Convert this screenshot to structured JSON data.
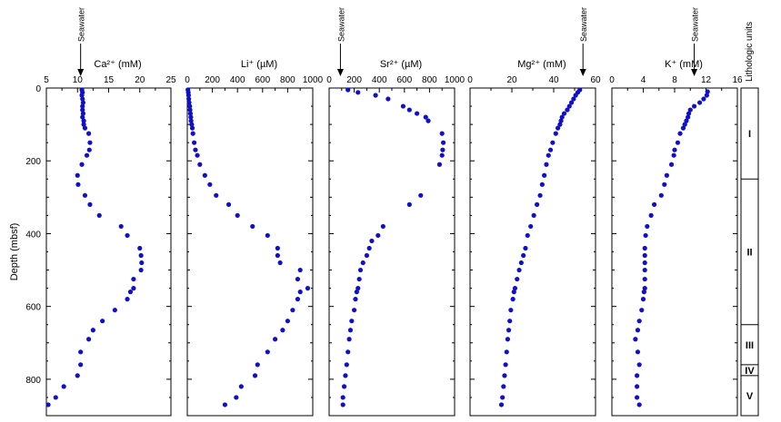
{
  "chart_data": {
    "type": "scatter",
    "ylabel": "Depth (mbsf)",
    "ylim": [
      0,
      900
    ],
    "yticks": [
      0,
      200,
      400,
      600,
      800
    ],
    "point_color": "#1010c8",
    "panels": [
      {
        "label": "Ca²⁺ (mM)",
        "xlim": [
          5,
          25
        ],
        "xticks": [
          5,
          10,
          15,
          20,
          25
        ],
        "seawater": {
          "label": "Seawater",
          "value": 10.5
        },
        "points": [
          [
            10.7,
            5
          ],
          [
            10.8,
            12
          ],
          [
            10.7,
            20
          ],
          [
            10.8,
            30
          ],
          [
            10.9,
            40
          ],
          [
            10.8,
            50
          ],
          [
            10.8,
            60
          ],
          [
            10.9,
            70
          ],
          [
            10.8,
            80
          ],
          [
            11.0,
            90
          ],
          [
            11.0,
            100
          ],
          [
            11.2,
            110
          ],
          [
            11.8,
            125
          ],
          [
            12.0,
            150
          ],
          [
            11.9,
            170
          ],
          [
            11.5,
            185
          ],
          [
            10.7,
            210
          ],
          [
            10.0,
            240
          ],
          [
            10.1,
            265
          ],
          [
            11.2,
            295
          ],
          [
            12.0,
            320
          ],
          [
            13.5,
            350
          ],
          [
            17.0,
            380
          ],
          [
            18.0,
            405
          ],
          [
            20.0,
            440
          ],
          [
            20.2,
            460
          ],
          [
            20.3,
            480
          ],
          [
            20.2,
            500
          ],
          [
            19.0,
            525
          ],
          [
            19.0,
            550
          ],
          [
            18.5,
            560
          ],
          [
            18.0,
            580
          ],
          [
            16.0,
            610
          ],
          [
            14.0,
            640
          ],
          [
            12.5,
            665
          ],
          [
            11.8,
            690
          ],
          [
            10.5,
            725
          ],
          [
            10.5,
            760
          ],
          [
            10.0,
            790
          ],
          [
            7.8,
            820
          ],
          [
            6.5,
            850
          ],
          [
            5.3,
            870
          ]
        ]
      },
      {
        "label": "Li⁺ (µM)",
        "xlim": [
          0,
          1000
        ],
        "xticks": [
          0,
          200,
          400,
          600,
          800,
          1000
        ],
        "points": [
          [
            5,
            5
          ],
          [
            8,
            12
          ],
          [
            10,
            20
          ],
          [
            12,
            30
          ],
          [
            15,
            40
          ],
          [
            20,
            50
          ],
          [
            22,
            60
          ],
          [
            25,
            70
          ],
          [
            28,
            80
          ],
          [
            30,
            90
          ],
          [
            35,
            100
          ],
          [
            40,
            110
          ],
          [
            45,
            125
          ],
          [
            55,
            150
          ],
          [
            65,
            170
          ],
          [
            80,
            185
          ],
          [
            100,
            210
          ],
          [
            140,
            240
          ],
          [
            180,
            265
          ],
          [
            230,
            295
          ],
          [
            330,
            320
          ],
          [
            400,
            350
          ],
          [
            520,
            380
          ],
          [
            640,
            405
          ],
          [
            720,
            440
          ],
          [
            720,
            460
          ],
          [
            740,
            480
          ],
          [
            900,
            500
          ],
          [
            880,
            525
          ],
          [
            960,
            550
          ],
          [
            900,
            560
          ],
          [
            880,
            580
          ],
          [
            840,
            610
          ],
          [
            800,
            640
          ],
          [
            760,
            665
          ],
          [
            700,
            690
          ],
          [
            640,
            725
          ],
          [
            560,
            760
          ],
          [
            540,
            790
          ],
          [
            430,
            820
          ],
          [
            390,
            850
          ],
          [
            300,
            870
          ]
        ]
      },
      {
        "label": "Sr²⁺ (µM)",
        "xlim": [
          0,
          1000
        ],
        "xticks": [
          0,
          200,
          400,
          600,
          800,
          1000
        ],
        "seawater": {
          "label": "Seawater",
          "value": 90
        },
        "points": [
          [
            150,
            5
          ],
          [
            230,
            12
          ],
          [
            370,
            20
          ],
          [
            470,
            30
          ],
          [
            590,
            50
          ],
          [
            640,
            60
          ],
          [
            700,
            70
          ],
          [
            770,
            80
          ],
          [
            790,
            90
          ],
          [
            900,
            125
          ],
          [
            910,
            150
          ],
          [
            905,
            170
          ],
          [
            900,
            185
          ],
          [
            880,
            210
          ],
          [
            730,
            295
          ],
          [
            640,
            320
          ],
          [
            430,
            380
          ],
          [
            390,
            405
          ],
          [
            340,
            420
          ],
          [
            320,
            440
          ],
          [
            300,
            460
          ],
          [
            270,
            480
          ],
          [
            250,
            500
          ],
          [
            240,
            525
          ],
          [
            230,
            550
          ],
          [
            220,
            560
          ],
          [
            210,
            580
          ],
          [
            200,
            610
          ],
          [
            180,
            640
          ],
          [
            170,
            665
          ],
          [
            160,
            690
          ],
          [
            150,
            725
          ],
          [
            140,
            760
          ],
          [
            130,
            790
          ],
          [
            120,
            820
          ],
          [
            110,
            850
          ],
          [
            110,
            870
          ]
        ]
      },
      {
        "label": "Mg²⁺ (mM)",
        "xlim": [
          0,
          60
        ],
        "xticks": [
          0,
          20,
          40,
          60
        ],
        "seawater": {
          "label": "Seawater",
          "value": 54
        },
        "points": [
          [
            52.5,
            5
          ],
          [
            51.5,
            12
          ],
          [
            50.5,
            20
          ],
          [
            49.5,
            30
          ],
          [
            48.5,
            40
          ],
          [
            47.5,
            50
          ],
          [
            46.5,
            60
          ],
          [
            45.0,
            70
          ],
          [
            44.0,
            80
          ],
          [
            43.5,
            90
          ],
          [
            43.0,
            100
          ],
          [
            42.0,
            110
          ],
          [
            41.0,
            125
          ],
          [
            39.5,
            150
          ],
          [
            38.5,
            170
          ],
          [
            37.5,
            185
          ],
          [
            36.5,
            210
          ],
          [
            35.5,
            240
          ],
          [
            34.5,
            265
          ],
          [
            33.5,
            295
          ],
          [
            32.0,
            320
          ],
          [
            30.5,
            350
          ],
          [
            29.0,
            380
          ],
          [
            27.5,
            405
          ],
          [
            26.5,
            440
          ],
          [
            25.5,
            460
          ],
          [
            24.5,
            480
          ],
          [
            23.5,
            500
          ],
          [
            22.5,
            525
          ],
          [
            21.5,
            550
          ],
          [
            21.0,
            560
          ],
          [
            20.5,
            580
          ],
          [
            19.5,
            610
          ],
          [
            19.0,
            640
          ],
          [
            18.5,
            665
          ],
          [
            18.0,
            690
          ],
          [
            17.5,
            725
          ],
          [
            17.0,
            760
          ],
          [
            16.5,
            790
          ],
          [
            16.0,
            820
          ],
          [
            15.5,
            850
          ],
          [
            15.0,
            870
          ]
        ]
      },
      {
        "label": "K⁺ (mM)",
        "xlim": [
          0,
          16
        ],
        "xticks": [
          0,
          4,
          8,
          12,
          16
        ],
        "seawater": {
          "label": "Seawater",
          "value": 10.5
        },
        "points": [
          [
            12.2,
            10
          ],
          [
            12.1,
            20
          ],
          [
            11.7,
            30
          ],
          [
            11.2,
            40
          ],
          [
            10.5,
            50
          ],
          [
            10.0,
            60
          ],
          [
            9.8,
            70
          ],
          [
            9.7,
            80
          ],
          [
            9.5,
            90
          ],
          [
            9.3,
            100
          ],
          [
            9.1,
            110
          ],
          [
            8.7,
            125
          ],
          [
            8.4,
            150
          ],
          [
            8.0,
            170
          ],
          [
            7.9,
            185
          ],
          [
            7.6,
            210
          ],
          [
            7.0,
            240
          ],
          [
            6.7,
            265
          ],
          [
            6.3,
            295
          ],
          [
            5.4,
            320
          ],
          [
            5.0,
            350
          ],
          [
            4.5,
            380
          ],
          [
            4.3,
            405
          ],
          [
            4.2,
            440
          ],
          [
            4.2,
            460
          ],
          [
            4.2,
            480
          ],
          [
            4.2,
            500
          ],
          [
            4.2,
            525
          ],
          [
            4.2,
            550
          ],
          [
            4.1,
            560
          ],
          [
            4.0,
            580
          ],
          [
            3.8,
            610
          ],
          [
            3.5,
            640
          ],
          [
            3.3,
            665
          ],
          [
            3.0,
            690
          ],
          [
            3.3,
            725
          ],
          [
            3.5,
            760
          ],
          [
            3.2,
            790
          ],
          [
            3.2,
            820
          ],
          [
            3.2,
            850
          ],
          [
            3.5,
            870
          ]
        ]
      }
    ],
    "lithology": {
      "title": "Lithologic units",
      "units": [
        {
          "name": "I",
          "top": 0,
          "bottom": 250
        },
        {
          "name": "II",
          "top": 250,
          "bottom": 650
        },
        {
          "name": "III",
          "top": 650,
          "bottom": 760
        },
        {
          "name": "IV",
          "top": 760,
          "bottom": 790
        },
        {
          "name": "V",
          "top": 790,
          "bottom": 900
        }
      ]
    }
  }
}
